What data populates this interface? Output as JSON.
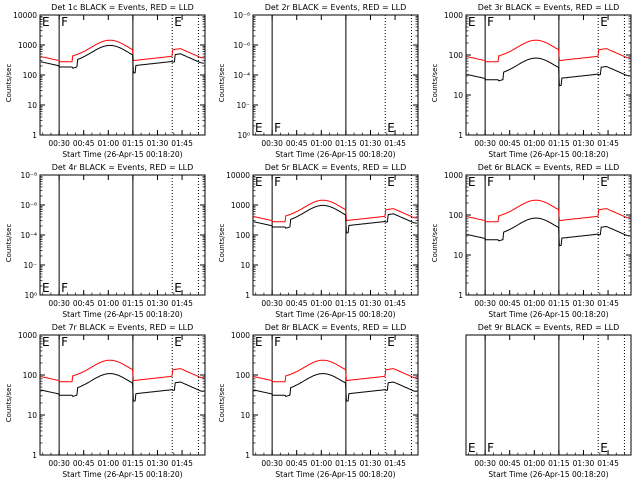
{
  "chart_data": [
    {
      "type": "line",
      "title": "Det 1c BLACK = Events, RED = LLD",
      "scale": "log",
      "ylabel": "Counts/sec",
      "xlabel": "Start Time (26-Apr-15 00:18:20)",
      "y_ticks": [
        "1",
        "10",
        "100",
        "1000",
        "10000"
      ],
      "x_ticks": [
        "00:30",
        "00:45",
        "01:00",
        "01:15",
        "01:30",
        "01:45"
      ],
      "markers": [
        {
          "x": "00:30",
          "label": "F",
          "style": "solid"
        },
        {
          "x": "01:15",
          "label": "",
          "style": "solid"
        },
        {
          "x": "01:39",
          "label": "E",
          "style": "dotted"
        },
        {
          "x": "01:55",
          "label": "",
          "style": "dotted"
        }
      ],
      "events_level": 0.93,
      "lld_level": 1.0,
      "has_data": true
    },
    {
      "type": "line",
      "title": "Det 2r BLACK = Events, RED = LLD",
      "scale": "log",
      "ylabel": "Counts/sec",
      "xlabel": "Start Time (26-Apr-15 00:18:20)",
      "y_ticks": [
        "10⁰",
        "10⁻⁲",
        "10⁻⁴",
        "10⁻⁶",
        "10⁻⁸"
      ],
      "x_ticks": [
        "00:30",
        "00:45",
        "01:00",
        "01:15",
        "01:30",
        "01:45"
      ],
      "markers": [
        {
          "x": "00:30",
          "label": "F",
          "style": "solid"
        },
        {
          "x": "01:15",
          "label": "",
          "style": "solid"
        },
        {
          "x": "01:39",
          "label": "E",
          "style": "dotted"
        },
        {
          "x": "01:55",
          "label": "",
          "style": "dotted"
        }
      ],
      "events_level": 0,
      "lld_level": 0,
      "has_data": false
    },
    {
      "type": "line",
      "title": "Det 3r BLACK = Events, RED = LLD",
      "scale": "log",
      "ylabel": "Counts/sec",
      "xlabel": "Start Time (26-Apr-15 00:18:20)",
      "y_ticks": [
        "1",
        "10",
        "100",
        "1000"
      ],
      "x_ticks": [
        "00:30",
        "00:45",
        "01:00",
        "01:15",
        "01:30",
        "01:45"
      ],
      "markers": [
        {
          "x": "00:30",
          "label": "F",
          "style": "solid"
        },
        {
          "x": "01:15",
          "label": "",
          "style": "solid"
        },
        {
          "x": "01:39",
          "label": "E",
          "style": "dotted"
        },
        {
          "x": "01:55",
          "label": "",
          "style": "dotted"
        }
      ],
      "events_level": 0.76,
      "lld_level": 1.0,
      "has_data": true
    },
    {
      "type": "line",
      "title": "Det 4r BLACK = Events, RED = LLD",
      "scale": "log",
      "ylabel": "Counts/sec",
      "xlabel": "Start Time (26-Apr-15 00:18:20)",
      "y_ticks": [
        "10⁰",
        "10⁻⁲",
        "10⁻⁴",
        "10⁻⁶",
        "10⁻⁸"
      ],
      "x_ticks": [
        "00:30",
        "00:45",
        "01:00",
        "01:15",
        "01:30",
        "01:45"
      ],
      "markers": [
        {
          "x": "00:30",
          "label": "F",
          "style": "solid"
        },
        {
          "x": "01:15",
          "label": "",
          "style": "solid"
        },
        {
          "x": "01:39",
          "label": "E",
          "style": "dotted"
        },
        {
          "x": "01:55",
          "label": "",
          "style": "dotted"
        }
      ],
      "events_level": 0,
      "lld_level": 0,
      "has_data": false
    },
    {
      "type": "line",
      "title": "Det 5r BLACK = Events, RED = LLD",
      "scale": "log",
      "ylabel": "Counts/sec",
      "xlabel": "Start Time (26-Apr-15 00:18:20)",
      "y_ticks": [
        "1",
        "10",
        "100",
        "1000",
        "10000"
      ],
      "x_ticks": [
        "00:30",
        "00:45",
        "01:00",
        "01:15",
        "01:30",
        "01:45"
      ],
      "markers": [
        {
          "x": "00:30",
          "label": "F",
          "style": "solid"
        },
        {
          "x": "01:15",
          "label": "",
          "style": "solid"
        },
        {
          "x": "01:39",
          "label": "E",
          "style": "dotted"
        },
        {
          "x": "01:55",
          "label": "",
          "style": "dotted"
        }
      ],
      "events_level": 0.93,
      "lld_level": 1.0,
      "has_data": true
    },
    {
      "type": "line",
      "title": "Det 6r BLACK = Events, RED = LLD",
      "scale": "log",
      "ylabel": "Counts/sec",
      "xlabel": "Start Time (26-Apr-15 00:18:20)",
      "y_ticks": [
        "1",
        "10",
        "100",
        "1000"
      ],
      "x_ticks": [
        "00:30",
        "00:45",
        "01:00",
        "01:15",
        "01:30",
        "01:45"
      ],
      "markers": [
        {
          "x": "00:30",
          "label": "F",
          "style": "solid"
        },
        {
          "x": "01:15",
          "label": "",
          "style": "solid"
        },
        {
          "x": "01:39",
          "label": "E",
          "style": "dotted"
        },
        {
          "x": "01:55",
          "label": "",
          "style": "dotted"
        }
      ],
      "events_level": 0.76,
      "lld_level": 1.0,
      "has_data": true
    },
    {
      "type": "line",
      "title": "Det 7r BLACK = Events, RED = LLD",
      "scale": "log",
      "ylabel": "Counts/sec",
      "xlabel": "Start Time (26-Apr-15 00:18:20)",
      "y_ticks": [
        "1",
        "10",
        "100",
        "1000"
      ],
      "x_ticks": [
        "00:30",
        "00:45",
        "01:00",
        "01:15",
        "01:30",
        "01:45"
      ],
      "markers": [
        {
          "x": "00:30",
          "label": "F",
          "style": "solid"
        },
        {
          "x": "01:15",
          "label": "",
          "style": "solid"
        },
        {
          "x": "01:39",
          "label": "E",
          "style": "dotted"
        },
        {
          "x": "01:55",
          "label": "",
          "style": "dotted"
        }
      ],
      "events_level": 0.82,
      "lld_level": 1.0,
      "has_data": true
    },
    {
      "type": "line",
      "title": "Det 8r BLACK = Events, RED = LLD",
      "scale": "log",
      "ylabel": "Counts/sec",
      "xlabel": "Start Time (26-Apr-15 00:18:20)",
      "y_ticks": [
        "1",
        "10",
        "100",
        "1000"
      ],
      "x_ticks": [
        "00:30",
        "00:45",
        "01:00",
        "01:15",
        "01:30",
        "01:45"
      ],
      "markers": [
        {
          "x": "00:30",
          "label": "F",
          "style": "solid"
        },
        {
          "x": "01:15",
          "label": "",
          "style": "solid"
        },
        {
          "x": "01:39",
          "label": "E",
          "style": "dotted"
        },
        {
          "x": "01:55",
          "label": "",
          "style": "dotted"
        }
      ],
      "events_level": 0.82,
      "lld_level": 1.0,
      "has_data": true
    },
    {
      "type": "line",
      "title": "Det 9r BLACK = Events, RED = LLD",
      "scale": "log",
      "ylabel": "",
      "xlabel": "Start Time (26-Apr-15 00:18:20)",
      "y_ticks": [],
      "x_ticks": [
        "00:30",
        "00:45",
        "01:00",
        "01:15",
        "01:30",
        "01:45"
      ],
      "markers": [
        {
          "x": "00:30",
          "label": "F",
          "style": "solid"
        },
        {
          "x": "01:15",
          "label": "",
          "style": "solid"
        },
        {
          "x": "01:39",
          "label": "E",
          "style": "dotted"
        },
        {
          "x": "01:55",
          "label": "",
          "style": "dotted"
        }
      ],
      "events_level": 0,
      "lld_level": 0,
      "has_data": false
    }
  ],
  "colors": {
    "events": "#000000",
    "lld": "#ff0000",
    "axes": "#000000",
    "background": "#ffffff"
  }
}
